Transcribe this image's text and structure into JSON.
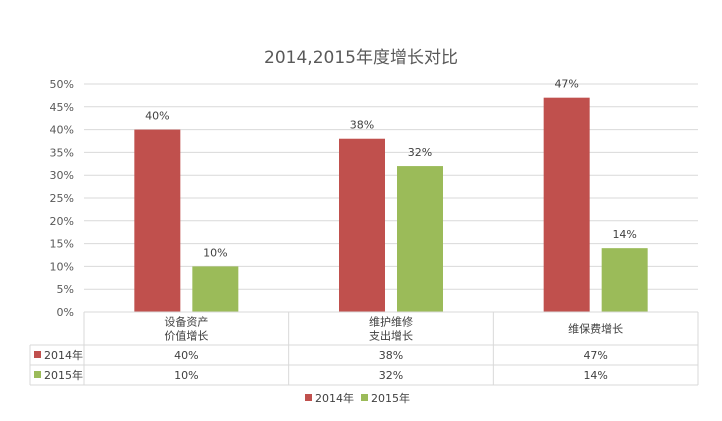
{
  "chart_data": {
    "type": "bar",
    "title": "2014,2015年度增长对比",
    "categories": [
      [
        "设备资产",
        "价值增长"
      ],
      [
        "维护维修",
        "支出增长"
      ],
      [
        "维保费增长"
      ]
    ],
    "series": [
      {
        "name": "2014年",
        "color": "#C0504D",
        "values": [
          40,
          38,
          47
        ],
        "labels": [
          "40%",
          "38%",
          "47%"
        ]
      },
      {
        "name": "2015年",
        "color": "#9BBB59",
        "values": [
          10,
          32,
          14
        ],
        "labels": [
          "10%",
          "32%",
          "14%"
        ]
      }
    ],
    "ylim": [
      0,
      50
    ],
    "yticks": [
      "0%",
      "5%",
      "10%",
      "15%",
      "20%",
      "25%",
      "30%",
      "35%",
      "40%",
      "45%",
      "50%"
    ],
    "grid": true,
    "legend": "bottom",
    "data_table": true
  }
}
